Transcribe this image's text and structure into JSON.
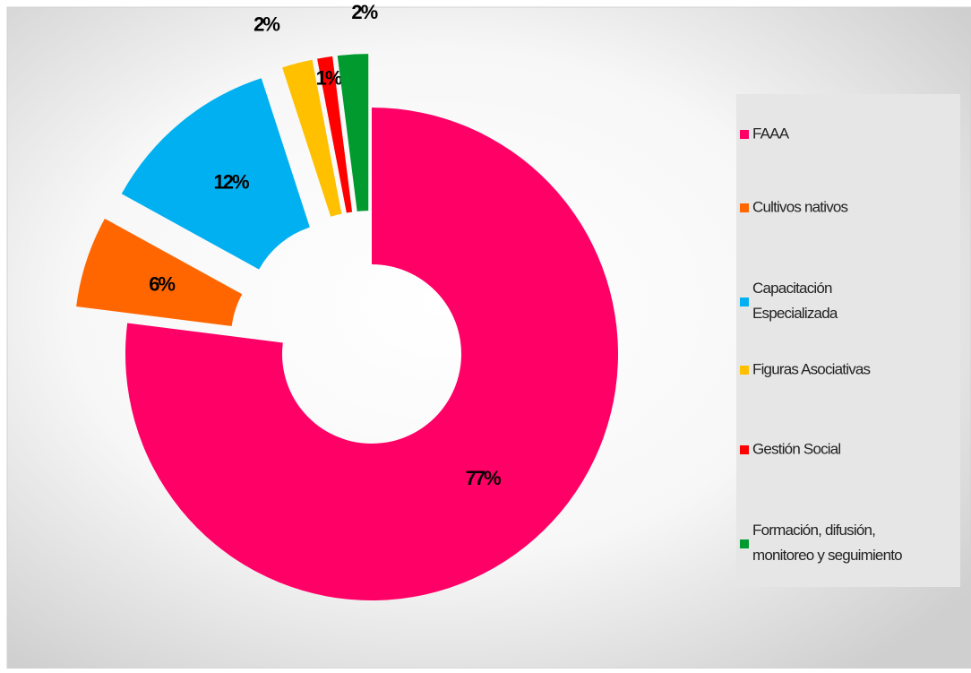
{
  "chart_data": {
    "type": "donut",
    "categories": [
      "FAAA",
      "Cultivos nativos",
      "Capacitación Especializada",
      "Figuras Asociativas",
      "Gestión Social",
      "Formación, difusión, monitoreo y seguimiento"
    ],
    "values": [
      77,
      6,
      12,
      2,
      1,
      2
    ],
    "value_labels": [
      "77%",
      "6%",
      "12%",
      "2%",
      "1%",
      "2%"
    ],
    "colors": [
      "#ff0066",
      "#ff6600",
      "#00b0f0",
      "#ffc000",
      "#ff0000",
      "#009a2e"
    ],
    "legend": "right"
  }
}
